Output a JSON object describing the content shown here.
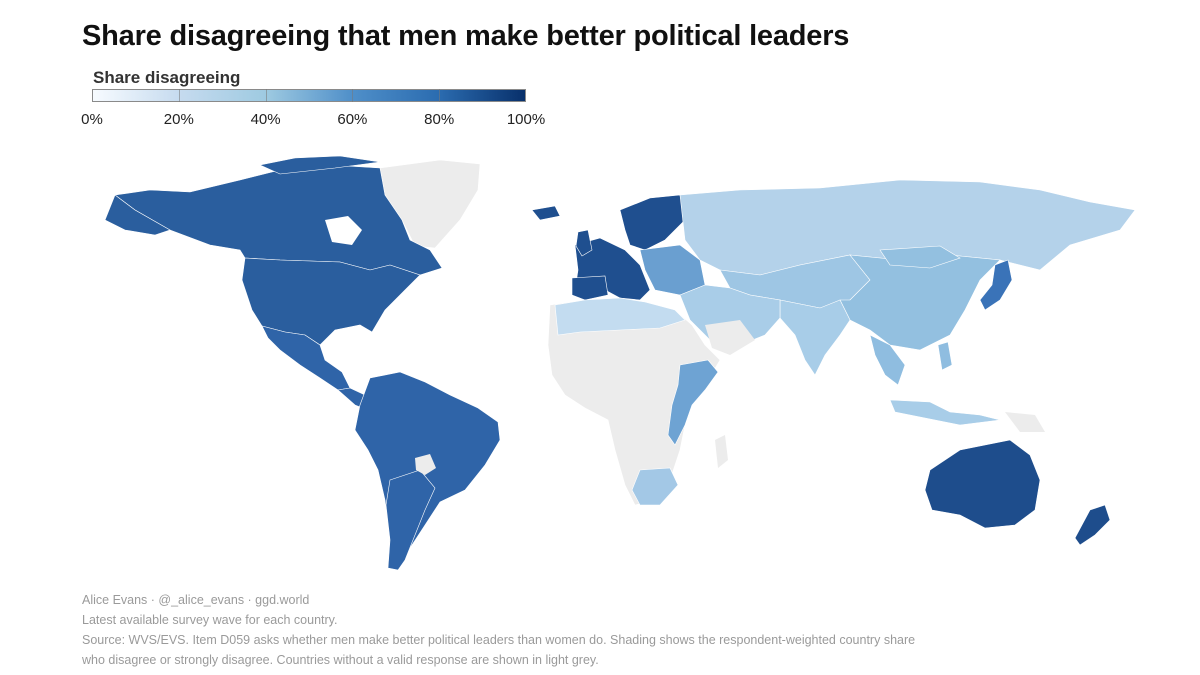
{
  "title": "Share disagreeing that men make better political leaders",
  "legend": {
    "title": "Share disagreeing",
    "ticks": [
      "0%",
      "20%",
      "40%",
      "60%",
      "80%",
      "100%"
    ],
    "colors": [
      "#f7fbff",
      "#c6dbef",
      "#9ecae1",
      "#4f8fc9",
      "#2b6cb0",
      "#08306b"
    ]
  },
  "map_colors": {
    "no_data": "#ececec",
    "americas": "#2f64a8",
    "north_america": "#2a5e9e",
    "europe_west": "#1f4f8f",
    "europe_east": "#6a9fd0",
    "russia": "#b4d2ea",
    "central_asia": "#9ec6e4",
    "china": "#93c0e0",
    "south_asia": "#a8cde8",
    "japan": "#3a73b8",
    "australia": "#1e4d8c",
    "east_africa": "#6ea3d3",
    "south_africa": "#a3c8e6",
    "north_africa": "#c3dcf0",
    "mena": "#a9cde8",
    "se_asia": "#8fbde0",
    "greenland": "#ececec"
  },
  "footer": {
    "line1": "Alice Evans · @_alice_evans · ggd.world",
    "line2": "Latest available survey wave for each country.",
    "line3": "Source: WVS/EVS. Item D059 asks whether men make better political leaders than women do. Shading shows the respondent-weighted country share",
    "line4": "who disagree or strongly disagree. Countries without a valid response are shown in light grey."
  }
}
